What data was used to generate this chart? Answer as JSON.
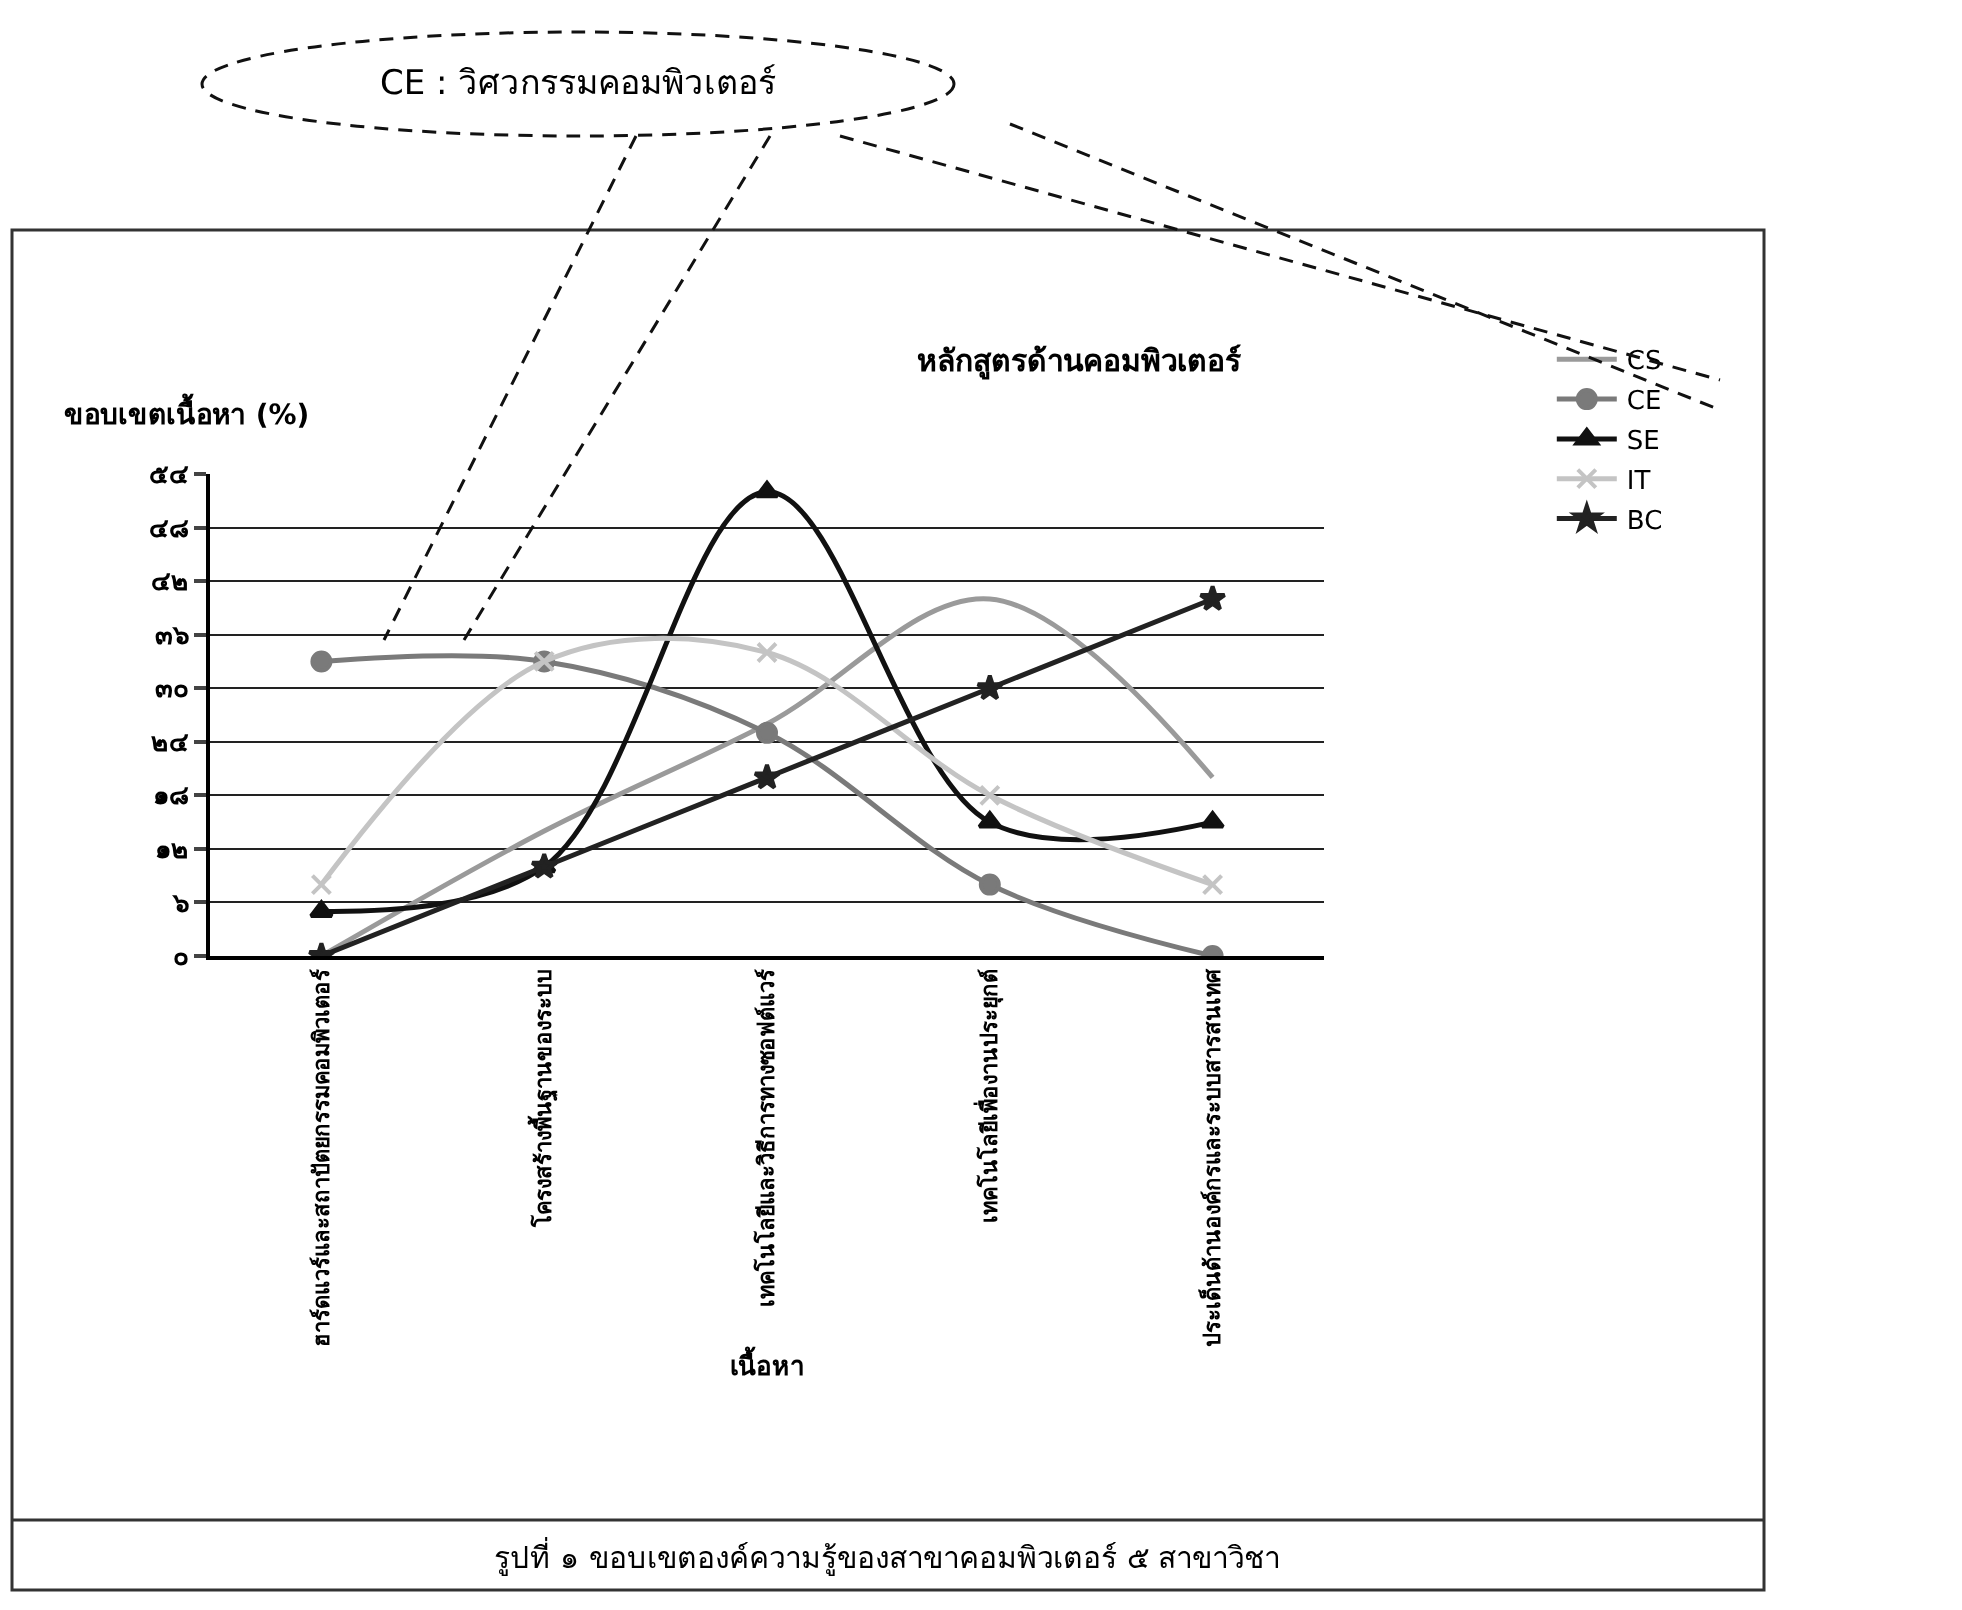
{
  "chart_data": {
    "type": "line",
    "title": "หลักสูตรด้านคอมพิวเตอร์",
    "xlabel": "เนื้อหา",
    "ylabel": "ขอบเขตเนื้อหา (%)",
    "categories": [
      "ฮาร์ดแวร์และสถาปัตยกรรมคอมพิวเตอร์",
      "โครงสร้างพื้นฐานของระบบ",
      "เทคโนโลยีและวิธีการทางซอฟต์แวร์",
      "เทคโนโลยีเพื่องานประยุกต์",
      "ประเด็นด้านองค์กรและระบบสารสนเทศ"
    ],
    "series": [
      {
        "name": "CS",
        "color": "#9a9a9a",
        "marker": "none",
        "values": [
          0,
          14,
          26,
          40,
          20
        ]
      },
      {
        "name": "CE",
        "color": "#7a7a7a",
        "marker": "circle",
        "values": [
          33,
          33,
          25,
          8,
          0
        ]
      },
      {
        "name": "SE",
        "color": "#111111",
        "marker": "triangle",
        "values": [
          5,
          10,
          52,
          15,
          15
        ]
      },
      {
        "name": "IT",
        "color": "#c4c4c4",
        "marker": "cross",
        "values": [
          8,
          33,
          34,
          18,
          8
        ]
      },
      {
        "name": "BC",
        "color": "#222222",
        "marker": "star",
        "values": [
          0,
          10,
          20,
          30,
          40
        ]
      }
    ],
    "ylim": [
      0,
      54
    ],
    "yticks": [
      {
        "value": 0,
        "label": "๐"
      },
      {
        "value": 6,
        "label": "๖"
      },
      {
        "value": 12,
        "label": "๑๒"
      },
      {
        "value": 18,
        "label": "๑๘"
      },
      {
        "value": 24,
        "label": "๒๔"
      },
      {
        "value": 30,
        "label": "๓๐"
      },
      {
        "value": 36,
        "label": "๓๖"
      },
      {
        "value": 42,
        "label": "๔๒"
      },
      {
        "value": 48,
        "label": "๔๘"
      },
      {
        "value": 54,
        "label": "๕๔"
      }
    ],
    "grid": "y",
    "legend": "top right",
    "annotations": [
      "CE : วิศวกรรมคอมพิวเตอร์",
      "รูปที่ ๑ ขอบเขตองค์ความรู้ของสาขาคอมพิวเตอร์ ๕ สาขาวิชา"
    ]
  }
}
